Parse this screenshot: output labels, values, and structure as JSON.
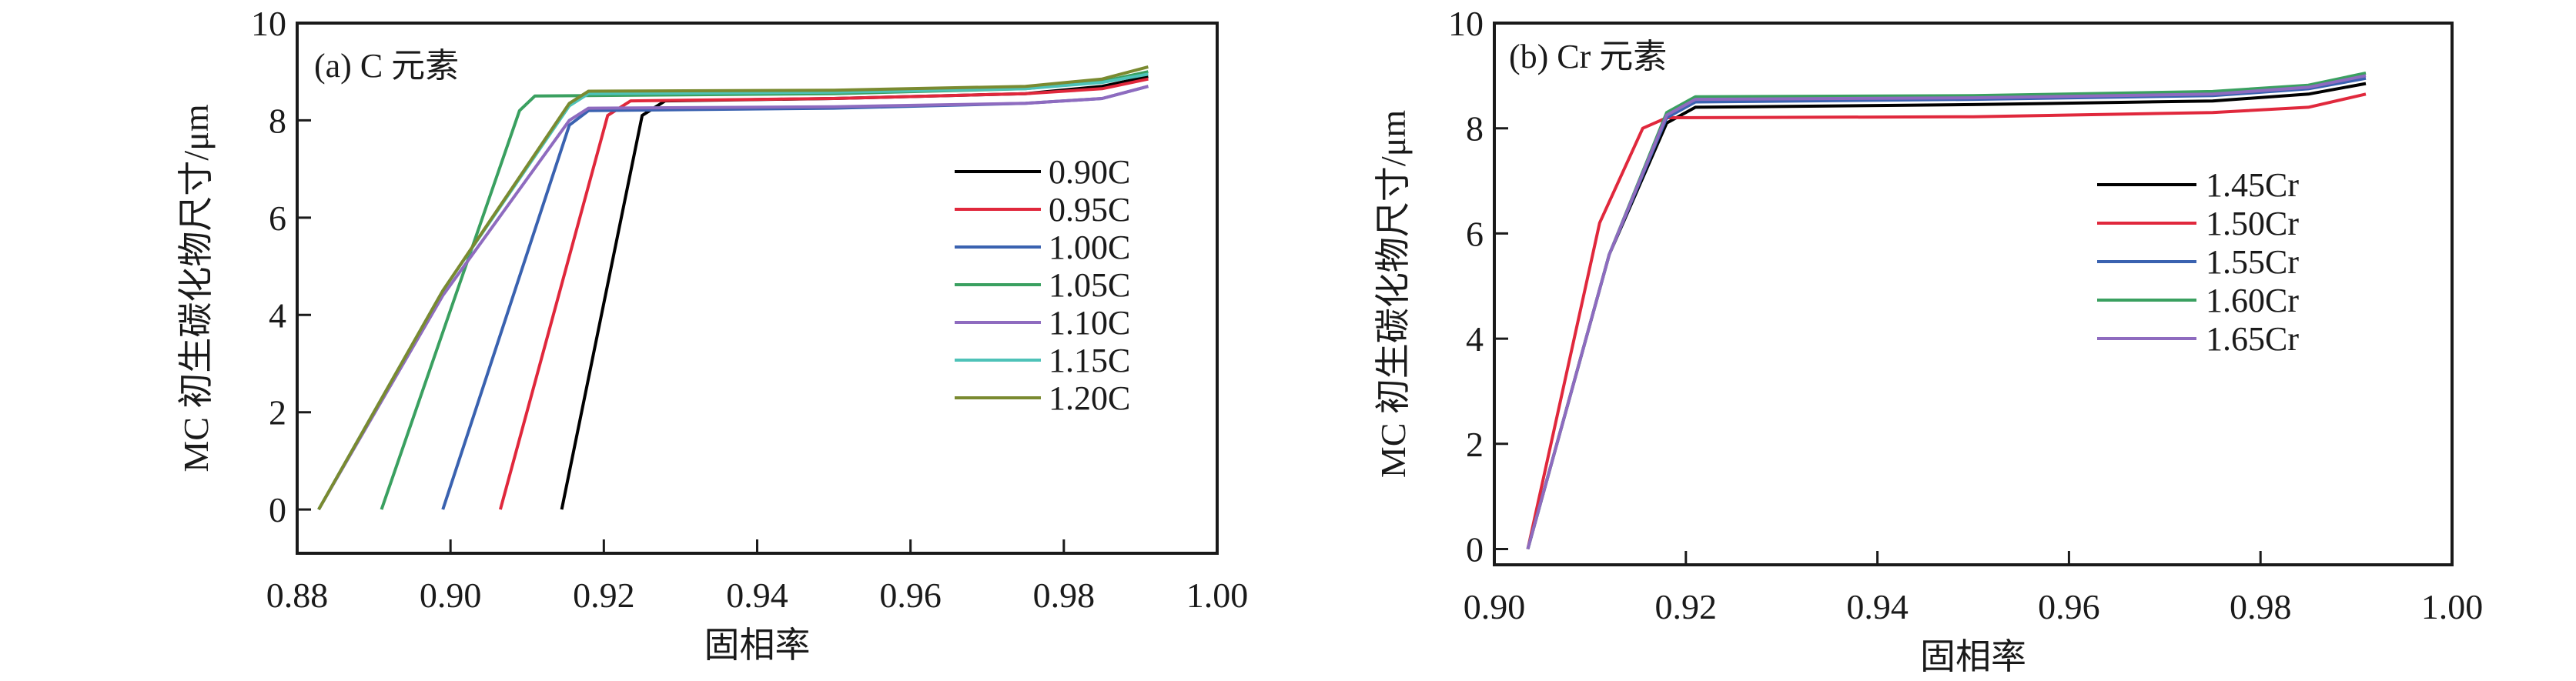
{
  "chart_data": [
    {
      "type": "line",
      "title": "(a) C 元素",
      "xlabel": "固相率",
      "ylabel": "MC 初生碳化物尺寸/μm",
      "xlim": [
        0.88,
        1.0
      ],
      "ylim": [
        -0.9,
        10
      ],
      "xticks": [
        "0.88",
        "0.90",
        "0.92",
        "0.94",
        "0.96",
        "0.98",
        "1.00"
      ],
      "yticks": [
        "0",
        "2",
        "4",
        "6",
        "8",
        "10"
      ],
      "grid": false,
      "legend_position": "right",
      "series": [
        {
          "name": "0.90C",
          "color": "#000000",
          "x": [
            0.9145,
            0.925,
            0.928,
            0.95,
            0.975,
            0.985,
            0.991
          ],
          "y": [
            0,
            8.1,
            8.4,
            8.45,
            8.55,
            8.7,
            8.9
          ]
        },
        {
          "name": "0.95C",
          "color": "#e0283c",
          "x": [
            0.9065,
            0.9205,
            0.9235,
            0.95,
            0.975,
            0.985,
            0.991
          ],
          "y": [
            0,
            8.1,
            8.4,
            8.45,
            8.55,
            8.65,
            8.85
          ]
        },
        {
          "name": "1.00C",
          "color": "#3a62b0",
          "x": [
            0.899,
            0.9155,
            0.918,
            0.95,
            0.975,
            0.985,
            0.991
          ],
          "y": [
            0,
            7.9,
            8.2,
            8.25,
            8.35,
            8.45,
            8.7
          ]
        },
        {
          "name": "1.05C",
          "color": "#3aa060",
          "x": [
            0.891,
            0.909,
            0.911,
            0.95,
            0.975,
            0.985,
            0.991
          ],
          "y": [
            0,
            8.2,
            8.5,
            8.55,
            8.65,
            8.8,
            9.0
          ]
        },
        {
          "name": "1.10C",
          "color": "#8e6bbf",
          "x": [
            0.8828,
            0.899,
            0.9155,
            0.918,
            0.95,
            0.975,
            0.985,
            0.991
          ],
          "y": [
            0,
            4.4,
            8.0,
            8.25,
            8.28,
            8.35,
            8.45,
            8.7
          ]
        },
        {
          "name": "1.15C",
          "color": "#4ec2b8",
          "x": [
            0.8828,
            0.899,
            0.9155,
            0.918,
            0.95,
            0.975,
            0.985,
            0.991
          ],
          "y": [
            0,
            4.5,
            8.3,
            8.55,
            8.58,
            8.65,
            8.78,
            8.95
          ]
        },
        {
          "name": "1.20C",
          "color": "#7a8a30",
          "x": [
            0.8828,
            0.899,
            0.9155,
            0.918,
            0.95,
            0.975,
            0.985,
            0.991
          ],
          "y": [
            0,
            4.5,
            8.35,
            8.6,
            8.62,
            8.7,
            8.85,
            9.1
          ]
        }
      ]
    },
    {
      "type": "line",
      "title": "(b) Cr 元素",
      "xlabel": "固相率",
      "ylabel": "MC 初生碳化物尺寸/μm",
      "xlim": [
        0.9,
        1.0
      ],
      "ylim": [
        -0.3,
        10
      ],
      "xticks": [
        "0.90",
        "0.92",
        "0.94",
        "0.96",
        "0.98",
        "1.00"
      ],
      "yticks": [
        "0",
        "2",
        "4",
        "6",
        "8",
        "10"
      ],
      "grid": false,
      "legend_position": "right",
      "series": [
        {
          "name": "1.45Cr",
          "color": "#000000",
          "x": [
            0.9035,
            0.912,
            0.918,
            0.921,
            0.95,
            0.975,
            0.985,
            0.991
          ],
          "y": [
            0,
            5.6,
            8.1,
            8.4,
            8.45,
            8.52,
            8.65,
            8.85
          ]
        },
        {
          "name": "1.50Cr",
          "color": "#e0283c",
          "x": [
            0.9035,
            0.911,
            0.9155,
            0.918,
            0.95,
            0.975,
            0.985,
            0.991
          ],
          "y": [
            0,
            6.2,
            8.0,
            8.2,
            8.22,
            8.3,
            8.4,
            8.65
          ]
        },
        {
          "name": "1.55Cr",
          "color": "#3a62b0",
          "x": [
            0.9035,
            0.912,
            0.918,
            0.921,
            0.95,
            0.975,
            0.985,
            0.991
          ],
          "y": [
            0,
            5.6,
            8.2,
            8.5,
            8.55,
            8.62,
            8.75,
            8.95
          ]
        },
        {
          "name": "1.60Cr",
          "color": "#3aa060",
          "x": [
            0.9035,
            0.912,
            0.918,
            0.921,
            0.95,
            0.975,
            0.985,
            0.991
          ],
          "y": [
            0,
            5.6,
            8.3,
            8.6,
            8.62,
            8.7,
            8.82,
            9.05
          ]
        },
        {
          "name": "1.65Cr",
          "color": "#8e6bbf",
          "x": [
            0.9035,
            0.912,
            0.918,
            0.921,
            0.95,
            0.975,
            0.985,
            0.991
          ],
          "y": [
            0,
            5.6,
            8.25,
            8.55,
            8.58,
            8.65,
            8.78,
            9.0
          ]
        }
      ]
    }
  ]
}
